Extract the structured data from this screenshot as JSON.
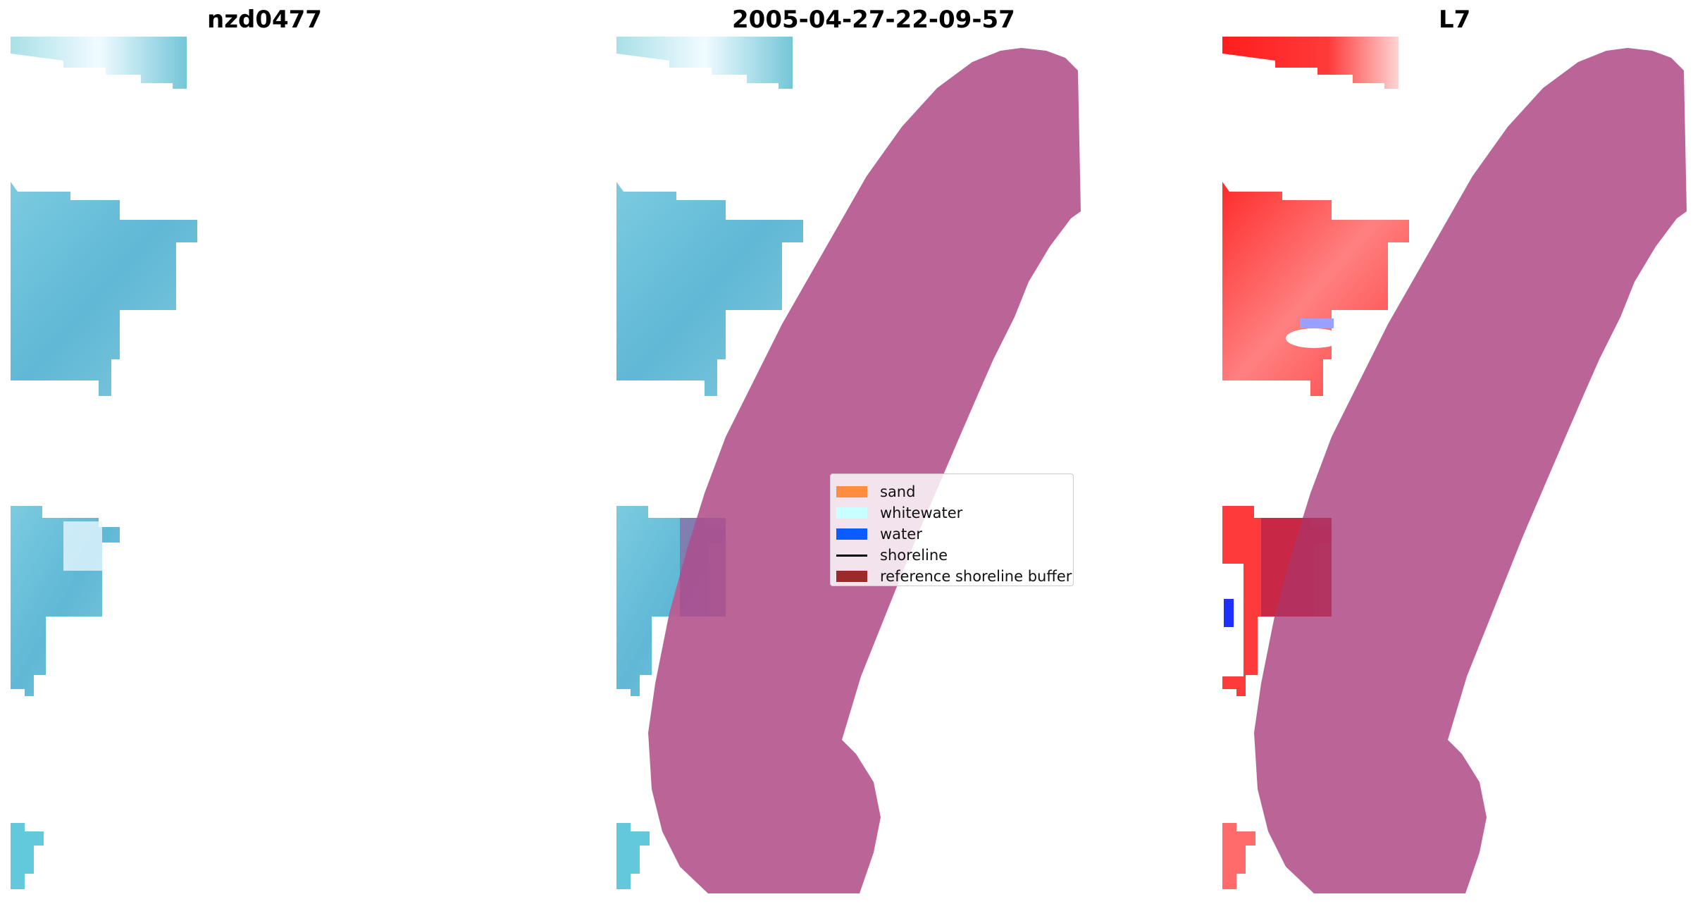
{
  "panels": [
    {
      "title": "nzd0477"
    },
    {
      "title": "2005-04-27-22-09-57"
    },
    {
      "title": "L7"
    }
  ],
  "legend": {
    "items": [
      {
        "label": "sand",
        "kind": "patch",
        "color": "#ff8c3f"
      },
      {
        "label": "whitewater",
        "kind": "patch",
        "color": "#c8ffff"
      },
      {
        "label": "water",
        "kind": "patch",
        "color": "#0a5cff"
      },
      {
        "label": "shoreline",
        "kind": "line",
        "color": "#000000"
      },
      {
        "label": "reference shoreline buffer",
        "kind": "patch",
        "color": "#9b2b2b"
      }
    ]
  },
  "colors": {
    "water_imagery": "#6cc3d8",
    "water_light": "#b6e3ec",
    "buffer": "#b85e94",
    "index_red": "#ff3030",
    "index_blue": "#3040ff"
  }
}
